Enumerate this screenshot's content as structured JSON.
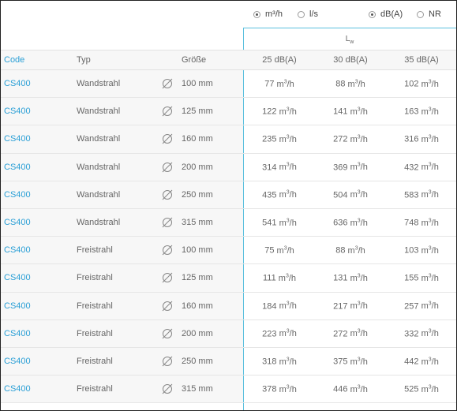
{
  "controls": {
    "units": [
      {
        "label": "m³/h",
        "selected": true
      },
      {
        "label": "l/s",
        "selected": false
      }
    ],
    "levels": [
      {
        "label": "dB(A)",
        "selected": true
      },
      {
        "label": "NR",
        "selected": false
      }
    ]
  },
  "table": {
    "group_label": "L",
    "group_label_sub": "w",
    "headers": {
      "code": "Code",
      "typ": "Typ",
      "size": "Größe",
      "v1": "25 dB(A)",
      "v2": "30 dB(A)",
      "v3": "35 dB(A)"
    },
    "unit": "m³/h",
    "rows": [
      {
        "code": "CS400",
        "typ": "Wandstrahl",
        "size": "100 mm",
        "v1": "77",
        "v2": "88",
        "v3": "102"
      },
      {
        "code": "CS400",
        "typ": "Wandstrahl",
        "size": "125 mm",
        "v1": "122",
        "v2": "141",
        "v3": "163"
      },
      {
        "code": "CS400",
        "typ": "Wandstrahl",
        "size": "160 mm",
        "v1": "235",
        "v2": "272",
        "v3": "316"
      },
      {
        "code": "CS400",
        "typ": "Wandstrahl",
        "size": "200 mm",
        "v1": "314",
        "v2": "369",
        "v3": "432"
      },
      {
        "code": "CS400",
        "typ": "Wandstrahl",
        "size": "250 mm",
        "v1": "435",
        "v2": "504",
        "v3": "583"
      },
      {
        "code": "CS400",
        "typ": "Wandstrahl",
        "size": "315 mm",
        "v1": "541",
        "v2": "636",
        "v3": "748"
      },
      {
        "code": "CS400",
        "typ": "Freistrahl",
        "size": "100 mm",
        "v1": "75",
        "v2": "88",
        "v3": "103"
      },
      {
        "code": "CS400",
        "typ": "Freistrahl",
        "size": "125 mm",
        "v1": "111",
        "v2": "131",
        "v3": "155"
      },
      {
        "code": "CS400",
        "typ": "Freistrahl",
        "size": "160 mm",
        "v1": "184",
        "v2": "217",
        "v3": "257"
      },
      {
        "code": "CS400",
        "typ": "Freistrahl",
        "size": "200 mm",
        "v1": "223",
        "v2": "272",
        "v3": "332"
      },
      {
        "code": "CS400",
        "typ": "Freistrahl",
        "size": "250 mm",
        "v1": "318",
        "v2": "375",
        "v3": "442"
      },
      {
        "code": "CS400",
        "typ": "Freistrahl",
        "size": "315 mm",
        "v1": "378",
        "v2": "446",
        "v3": "525"
      }
    ]
  },
  "icons": {
    "diameter": "diameter-icon"
  }
}
